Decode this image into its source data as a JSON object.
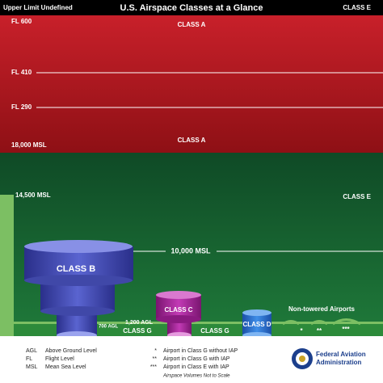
{
  "header": {
    "left": "Upper Limit Undefined",
    "title": "U.S. Airspace Classes at a Glance",
    "right": "CLASS E"
  },
  "altitudes": [
    "FL 600",
    "FL 410",
    "FL 290",
    "18,000 MSL",
    "14,500 MSL",
    "10,000 MSL",
    "1,200 AGL",
    "700 AGL"
  ],
  "classes": [
    "CLASS A",
    "CLASS A",
    "CLASS E",
    "CLASS B",
    "CLASS C",
    "CLASS D",
    "CLASS G",
    "CLASS G"
  ],
  "airports": {
    "title": "Non-towered Airports",
    "markers": [
      "*",
      "**",
      "***"
    ]
  },
  "legend": {
    "abbreviations": [
      {
        "key": "AGL",
        "text": "Above Ground Level"
      },
      {
        "key": "FL",
        "text": "Flight Level"
      },
      {
        "key": "MSL",
        "text": "Mean Sea Level"
      }
    ],
    "airport_types": [
      {
        "key": "*",
        "text": "Airport in Class G without IAP"
      },
      {
        "key": "**",
        "text": "Airport in Class G with IAP"
      },
      {
        "key": "***",
        "text": "Airport in Class E with IAP"
      }
    ],
    "note": "Airspace Volumes Not to Scale"
  },
  "agency": [
    "Federal Aviation",
    "Administration"
  ]
}
